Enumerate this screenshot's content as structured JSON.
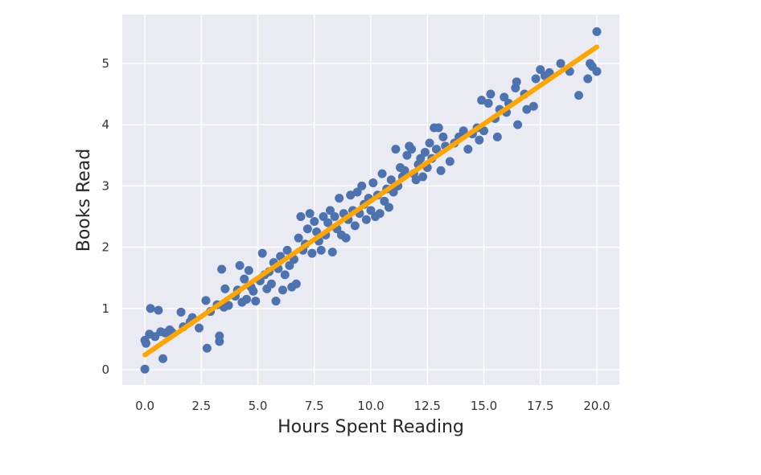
{
  "chart_data": {
    "type": "scatter",
    "xlabel": "Hours Spent Reading",
    "ylabel": "Books Read",
    "xlim": [
      -1.0,
      21.0
    ],
    "ylim": [
      -0.25,
      5.8
    ],
    "x_ticks": [
      0.0,
      2.5,
      5.0,
      7.5,
      10.0,
      12.5,
      15.0,
      17.5,
      20.0
    ],
    "x_tick_labels": [
      "0.0",
      "2.5",
      "5.0",
      "7.5",
      "10.0",
      "12.5",
      "15.0",
      "17.5",
      "20.0"
    ],
    "y_ticks": [
      0,
      1,
      2,
      3,
      4,
      5
    ],
    "y_tick_labels": [
      "0",
      "1",
      "2",
      "3",
      "4",
      "5"
    ],
    "grid": true,
    "background_color": "#eaeaf2",
    "points_color": "#4c72b0",
    "fit_line_color": "#ffa500",
    "fit_line": {
      "x": [
        0.0,
        20.0
      ],
      "y": [
        0.24,
        5.27
      ]
    },
    "points": [
      [
        0.0,
        0.01
      ],
      [
        0.0,
        0.48
      ],
      [
        0.05,
        0.43
      ],
      [
        0.2,
        0.58
      ],
      [
        0.25,
        1.0
      ],
      [
        0.45,
        0.54
      ],
      [
        0.6,
        0.97
      ],
      [
        0.7,
        0.62
      ],
      [
        0.8,
        0.18
      ],
      [
        0.9,
        0.6
      ],
      [
        1.1,
        0.65
      ],
      [
        1.2,
        0.61
      ],
      [
        1.6,
        0.94
      ],
      [
        1.7,
        0.7
      ],
      [
        2.0,
        0.78
      ],
      [
        2.1,
        0.85
      ],
      [
        2.4,
        0.68
      ],
      [
        2.7,
        1.13
      ],
      [
        2.75,
        0.35
      ],
      [
        2.9,
        0.95
      ],
      [
        3.2,
        1.06
      ],
      [
        3.3,
        0.55
      ],
      [
        3.3,
        0.46
      ],
      [
        3.4,
        1.64
      ],
      [
        3.5,
        1.02
      ],
      [
        3.55,
        1.32
      ],
      [
        3.7,
        1.05
      ],
      [
        4.0,
        1.2
      ],
      [
        4.1,
        1.3
      ],
      [
        4.2,
        1.7
      ],
      [
        4.3,
        1.1
      ],
      [
        4.4,
        1.48
      ],
      [
        4.5,
        1.15
      ],
      [
        4.6,
        1.62
      ],
      [
        4.7,
        1.35
      ],
      [
        4.8,
        1.28
      ],
      [
        4.9,
        1.12
      ],
      [
        5.1,
        1.45
      ],
      [
        5.2,
        1.9
      ],
      [
        5.3,
        1.55
      ],
      [
        5.4,
        1.32
      ],
      [
        5.5,
        1.6
      ],
      [
        5.6,
        1.4
      ],
      [
        5.7,
        1.75
      ],
      [
        5.8,
        1.12
      ],
      [
        5.9,
        1.65
      ],
      [
        6.0,
        1.85
      ],
      [
        6.1,
        1.3
      ],
      [
        6.2,
        1.55
      ],
      [
        6.3,
        1.95
      ],
      [
        6.4,
        1.7
      ],
      [
        6.5,
        1.35
      ],
      [
        6.6,
        1.8
      ],
      [
        6.7,
        1.4
      ],
      [
        6.8,
        2.15
      ],
      [
        6.9,
        2.5
      ],
      [
        7.0,
        1.95
      ],
      [
        7.1,
        2.05
      ],
      [
        7.2,
        2.3
      ],
      [
        7.3,
        2.55
      ],
      [
        7.4,
        1.9
      ],
      [
        7.5,
        2.42
      ],
      [
        7.6,
        2.25
      ],
      [
        7.7,
        2.1
      ],
      [
        7.8,
        1.95
      ],
      [
        7.9,
        2.5
      ],
      [
        8.0,
        2.2
      ],
      [
        8.1,
        2.4
      ],
      [
        8.2,
        2.6
      ],
      [
        8.3,
        1.92
      ],
      [
        8.4,
        2.5
      ],
      [
        8.5,
        2.3
      ],
      [
        8.6,
        2.8
      ],
      [
        8.7,
        2.2
      ],
      [
        8.8,
        2.55
      ],
      [
        8.9,
        2.15
      ],
      [
        9.0,
        2.45
      ],
      [
        9.1,
        2.85
      ],
      [
        9.2,
        2.6
      ],
      [
        9.3,
        2.35
      ],
      [
        9.4,
        2.9
      ],
      [
        9.5,
        2.55
      ],
      [
        9.6,
        3.0
      ],
      [
        9.7,
        2.7
      ],
      [
        9.8,
        2.45
      ],
      [
        9.9,
        2.8
      ],
      [
        10.0,
        2.6
      ],
      [
        10.1,
        3.05
      ],
      [
        10.2,
        2.5
      ],
      [
        10.3,
        2.85
      ],
      [
        10.4,
        2.55
      ],
      [
        10.5,
        3.2
      ],
      [
        10.6,
        2.75
      ],
      [
        10.7,
        2.95
      ],
      [
        10.8,
        2.65
      ],
      [
        10.9,
        3.1
      ],
      [
        11.0,
        2.9
      ],
      [
        11.1,
        3.6
      ],
      [
        11.2,
        3.0
      ],
      [
        11.3,
        3.3
      ],
      [
        11.4,
        3.15
      ],
      [
        11.5,
        3.25
      ],
      [
        11.6,
        3.5
      ],
      [
        11.7,
        3.65
      ],
      [
        11.8,
        3.6
      ],
      [
        11.9,
        3.2
      ],
      [
        12.0,
        3.1
      ],
      [
        12.1,
        3.35
      ],
      [
        12.2,
        3.45
      ],
      [
        12.3,
        3.15
      ],
      [
        12.4,
        3.55
      ],
      [
        12.5,
        3.3
      ],
      [
        12.6,
        3.7
      ],
      [
        12.7,
        3.45
      ],
      [
        12.8,
        3.95
      ],
      [
        12.9,
        3.6
      ],
      [
        13.0,
        3.95
      ],
      [
        13.1,
        3.25
      ],
      [
        13.2,
        3.8
      ],
      [
        13.3,
        3.65
      ],
      [
        13.5,
        3.4
      ],
      [
        13.7,
        3.7
      ],
      [
        13.9,
        3.8
      ],
      [
        14.1,
        3.9
      ],
      [
        14.3,
        3.6
      ],
      [
        14.5,
        3.85
      ],
      [
        14.7,
        3.95
      ],
      [
        14.8,
        3.75
      ],
      [
        14.9,
        4.4
      ],
      [
        15.0,
        3.9
      ],
      [
        15.2,
        4.35
      ],
      [
        15.3,
        4.5
      ],
      [
        15.5,
        4.1
      ],
      [
        15.6,
        3.8
      ],
      [
        15.7,
        4.25
      ],
      [
        15.9,
        4.45
      ],
      [
        16.0,
        4.2
      ],
      [
        16.1,
        4.35
      ],
      [
        16.4,
        4.6
      ],
      [
        16.45,
        4.7
      ],
      [
        16.5,
        4.0
      ],
      [
        16.8,
        4.5
      ],
      [
        16.9,
        4.25
      ],
      [
        17.2,
        4.3
      ],
      [
        17.3,
        4.75
      ],
      [
        17.5,
        4.9
      ],
      [
        17.7,
        4.8
      ],
      [
        17.9,
        4.85
      ],
      [
        18.4,
        5.0
      ],
      [
        18.8,
        4.87
      ],
      [
        19.2,
        4.48
      ],
      [
        19.6,
        4.75
      ],
      [
        19.7,
        5.0
      ],
      [
        19.8,
        4.95
      ],
      [
        20.0,
        4.87
      ],
      [
        20.0,
        5.52
      ]
    ]
  }
}
